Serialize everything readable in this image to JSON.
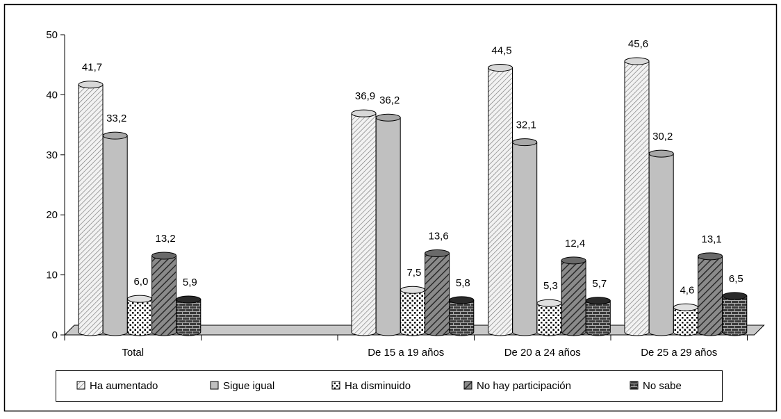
{
  "chart_data": {
    "type": "bar",
    "categories": [
      "Total",
      "",
      "De 15 a 19 años",
      "De 20 a 24 años",
      "De 25 a 29 años"
    ],
    "series": [
      {
        "name": "Ha aumentado",
        "values": [
          41.7,
          null,
          36.9,
          44.5,
          45.6
        ],
        "labels": [
          "41,7",
          "",
          "36,9",
          "44,5",
          "45,6"
        ],
        "color": "#e8e8e8",
        "pattern": "hatch-light"
      },
      {
        "name": "Sigue igual",
        "values": [
          33.2,
          null,
          36.2,
          32.1,
          30.2
        ],
        "labels": [
          "33,2",
          "",
          "36,2",
          "32,1",
          "30,2"
        ],
        "color": "#c0c0c0",
        "pattern": "solid"
      },
      {
        "name": "Ha disminuido",
        "values": [
          6.0,
          null,
          7.5,
          5.3,
          4.6
        ],
        "labels": [
          "6,0",
          "",
          "7,5",
          "5,3",
          "4,6"
        ],
        "color": "#ffffff",
        "pattern": "dots"
      },
      {
        "name": "No hay participación",
        "values": [
          13.2,
          null,
          13.6,
          12.4,
          13.1
        ],
        "labels": [
          "13,2",
          "",
          "13,6",
          "12,4",
          "13,1"
        ],
        "color": "#808080",
        "pattern": "hatch-dark"
      },
      {
        "name": "No sabe",
        "values": [
          5.9,
          null,
          5.8,
          5.7,
          6.5
        ],
        "labels": [
          "5,9",
          "",
          "5,8",
          "5,7",
          "6,5"
        ],
        "color": "#404040",
        "pattern": "brick"
      }
    ],
    "y_ticks": [
      "0",
      "10",
      "20",
      "30",
      "40",
      "50"
    ],
    "ylim": [
      0,
      50
    ],
    "title": "",
    "xlabel": "",
    "ylabel": "",
    "grid": false,
    "legend_position": "bottom"
  }
}
